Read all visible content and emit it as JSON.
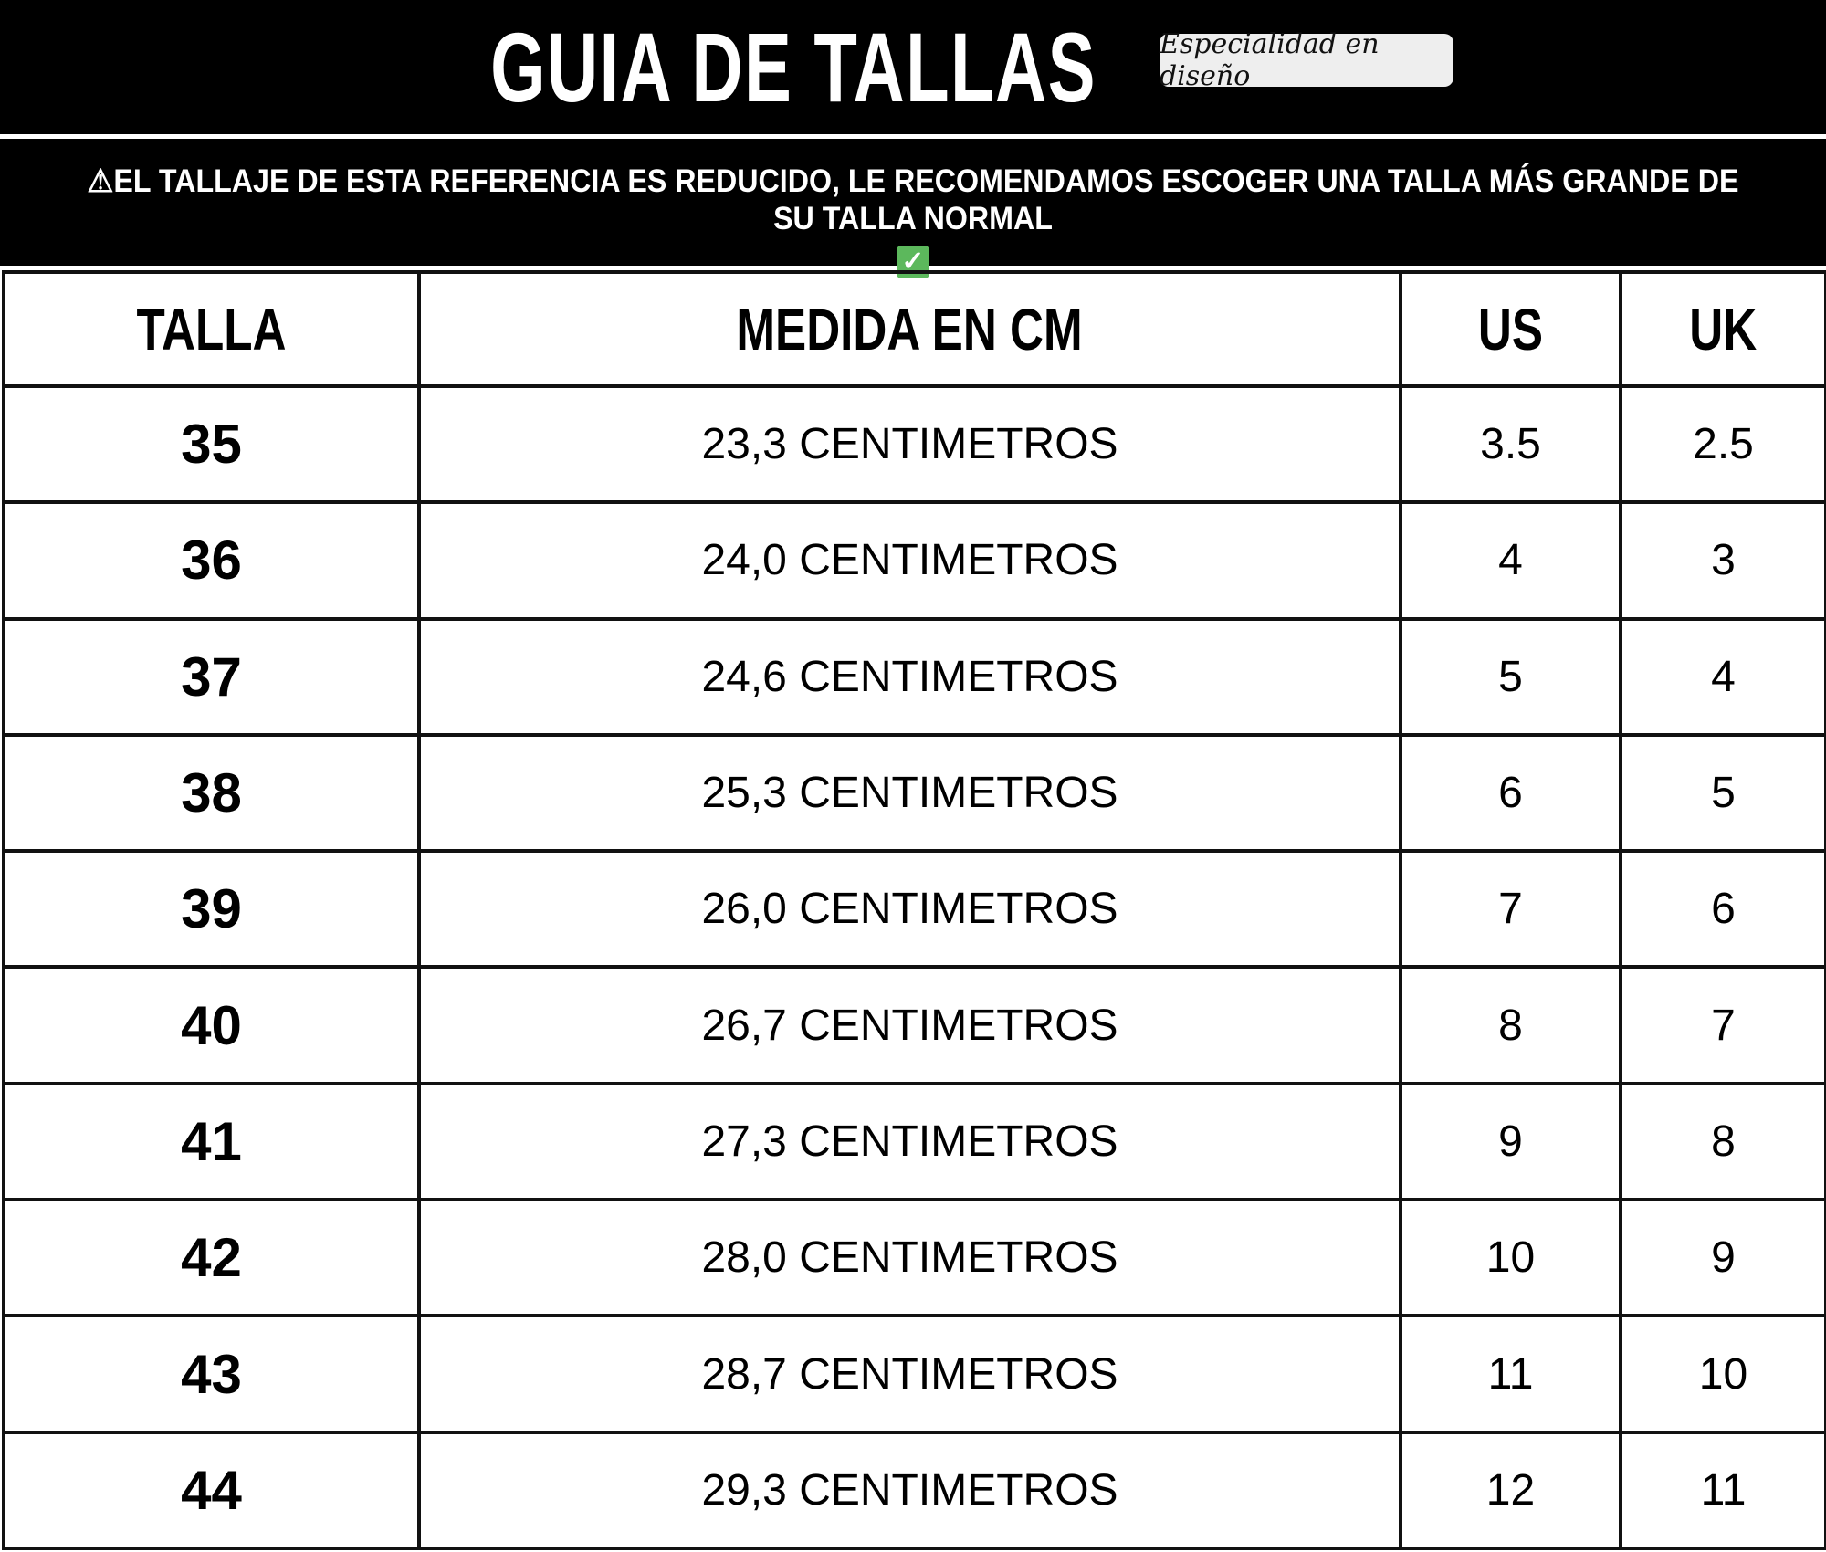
{
  "header": {
    "title": "GUIA DE TALLAS",
    "badge": "Especialidad en diseño"
  },
  "notice": {
    "icon": "warning-icon",
    "text": "⚠EL TALLAJE DE ESTA REFERENCIA ES REDUCIDO, LE RECOMENDAMOS ESCOGER UNA TALLA MÁS GRANDE DE SU TALLA NORMAL",
    "check_icon": "check-mark-icon",
    "check_color": "#5cb85c"
  },
  "table": {
    "columns": [
      "TALLA",
      "MEDIDA EN CM",
      "US",
      "UK"
    ],
    "rows": [
      [
        "35",
        "23,3 CENTIMETROS",
        "3.5",
        "2.5"
      ],
      [
        "36",
        "24,0 CENTIMETROS",
        "4",
        "3"
      ],
      [
        "37",
        "24,6 CENTIMETROS",
        "5",
        "4"
      ],
      [
        "38",
        "25,3 CENTIMETROS",
        "6",
        "5"
      ],
      [
        "39",
        "26,0 CENTIMETROS",
        "7",
        "6"
      ],
      [
        "40",
        "26,7 CENTIMETROS",
        "8",
        "7"
      ],
      [
        "41",
        "27,3 CENTIMETROS",
        "9",
        "8"
      ],
      [
        "42",
        "28,0 CENTIMETROS",
        "10",
        "9"
      ],
      [
        "43",
        "28,7 CENTIMETROS",
        "11",
        "10"
      ],
      [
        "44",
        "29,3 CENTIMETROS",
        "12",
        "11"
      ]
    ]
  }
}
